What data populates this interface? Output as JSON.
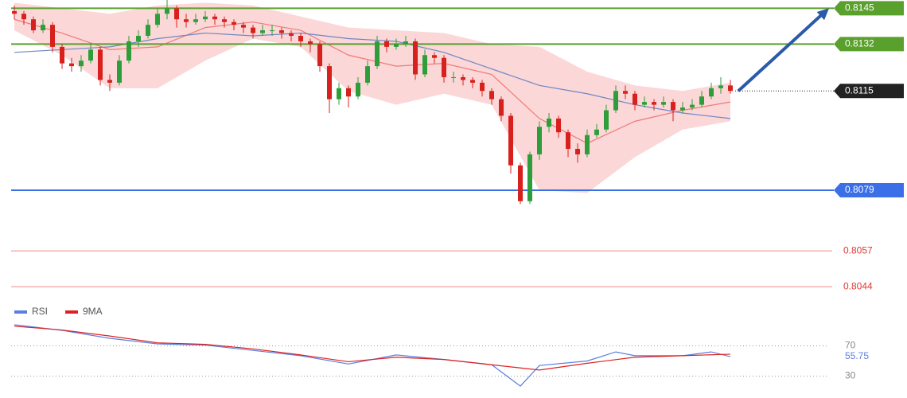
{
  "chart_data": [
    {
      "type": "candlestick",
      "ylim": [
        0.804,
        0.8148
      ],
      "up_color": "#2e9e3a",
      "down_color": "#d8201c",
      "open": [
        0.8144,
        0.8143,
        0.8141,
        0.8137,
        0.8139,
        0.8131,
        0.8125,
        0.8124,
        0.8126,
        0.813,
        0.8119,
        0.8118,
        0.8126,
        0.8133,
        0.8135,
        0.8139,
        0.8143,
        0.8145,
        0.8141,
        0.814,
        0.8141,
        0.8142,
        0.8141,
        0.814,
        0.8139,
        0.8138,
        0.8136,
        0.8137,
        0.8137,
        0.8136,
        0.8135,
        0.8133,
        0.8132,
        0.8124,
        0.8112,
        0.8116,
        0.8113,
        0.8118,
        0.8124,
        0.8133,
        0.8131,
        0.8132,
        0.8133,
        0.8121,
        0.8128,
        0.8127,
        0.812,
        0.812,
        0.8119,
        0.8118,
        0.8115,
        0.8112,
        0.8106,
        0.8088,
        0.8075,
        0.8092,
        0.8102,
        0.8105,
        0.81,
        0.8094,
        0.8092,
        0.8099,
        0.8101,
        0.8108,
        0.8115,
        0.8114,
        0.811,
        0.8111,
        0.811,
        0.8111,
        0.8108,
        0.8109,
        0.811,
        0.8113,
        0.8116,
        0.8117
      ],
      "high": [
        0.8146,
        0.8144,
        0.8142,
        0.8141,
        0.814,
        0.8132,
        0.8127,
        0.8128,
        0.8132,
        0.8131,
        0.8121,
        0.8128,
        0.8135,
        0.8137,
        0.8141,
        0.8145,
        0.8148,
        0.8146,
        0.8143,
        0.8143,
        0.8144,
        0.8143,
        0.8142,
        0.8141,
        0.814,
        0.8139,
        0.8139,
        0.8139,
        0.8138,
        0.8137,
        0.8136,
        0.8134,
        0.8133,
        0.8125,
        0.8118,
        0.8117,
        0.812,
        0.8126,
        0.8135,
        0.8134,
        0.8134,
        0.8135,
        0.8134,
        0.813,
        0.8129,
        0.8128,
        0.8122,
        0.8121,
        0.812,
        0.8119,
        0.8116,
        0.8113,
        0.8107,
        0.8089,
        0.8093,
        0.8104,
        0.8107,
        0.8106,
        0.8101,
        0.8096,
        0.8101,
        0.8103,
        0.811,
        0.8117,
        0.8117,
        0.8115,
        0.8113,
        0.8112,
        0.8113,
        0.8112,
        0.8111,
        0.8112,
        0.8115,
        0.8118,
        0.812,
        0.8119
      ],
      "low": [
        0.8141,
        0.8139,
        0.8136,
        0.8136,
        0.8129,
        0.8123,
        0.8122,
        0.8122,
        0.8125,
        0.8117,
        0.8115,
        0.8117,
        0.8125,
        0.8131,
        0.8134,
        0.8138,
        0.8141,
        0.8138,
        0.8138,
        0.8139,
        0.814,
        0.8139,
        0.8138,
        0.8137,
        0.8136,
        0.8134,
        0.8135,
        0.8135,
        0.8134,
        0.8133,
        0.8131,
        0.8129,
        0.8122,
        0.8107,
        0.811,
        0.8109,
        0.8112,
        0.8117,
        0.8123,
        0.8129,
        0.813,
        0.8131,
        0.8119,
        0.812,
        0.8125,
        0.8118,
        0.8118,
        0.8117,
        0.8116,
        0.8113,
        0.811,
        0.8104,
        0.8085,
        0.8074,
        0.8074,
        0.809,
        0.81,
        0.8098,
        0.8091,
        0.8089,
        0.8091,
        0.8098,
        0.81,
        0.8107,
        0.8112,
        0.8108,
        0.8109,
        0.8108,
        0.8109,
        0.8104,
        0.8107,
        0.8108,
        0.8109,
        0.8112,
        0.8114,
        0.8114
      ],
      "close": [
        0.8143,
        0.8141,
        0.8137,
        0.8139,
        0.8131,
        0.8125,
        0.8124,
        0.8126,
        0.813,
        0.8119,
        0.8118,
        0.8126,
        0.8133,
        0.8135,
        0.8139,
        0.8143,
        0.8145,
        0.8141,
        0.814,
        0.8141,
        0.8142,
        0.8141,
        0.814,
        0.8139,
        0.8138,
        0.8136,
        0.8137,
        0.8137,
        0.8136,
        0.8135,
        0.8133,
        0.8132,
        0.8124,
        0.8112,
        0.8116,
        0.8113,
        0.8118,
        0.8124,
        0.8133,
        0.8131,
        0.8132,
        0.8133,
        0.8121,
        0.8128,
        0.8127,
        0.812,
        0.812,
        0.8119,
        0.8118,
        0.8115,
        0.8112,
        0.8106,
        0.8088,
        0.8075,
        0.8092,
        0.8102,
        0.8105,
        0.81,
        0.8094,
        0.8092,
        0.8099,
        0.8101,
        0.8108,
        0.8115,
        0.8114,
        0.811,
        0.8111,
        0.811,
        0.8111,
        0.8108,
        0.8109,
        0.811,
        0.8113,
        0.8116,
        0.8117,
        0.8115
      ],
      "bands": {
        "x": [
          0,
          5,
          10,
          15,
          20,
          25,
          30,
          35,
          40,
          45,
          50,
          55,
          60,
          65,
          70,
          75
        ],
        "color": "#f9c9c9",
        "upper": [
          0.8147,
          0.8145,
          0.8143,
          0.8146,
          0.8147,
          0.8146,
          0.8142,
          0.8138,
          0.8137,
          0.8136,
          0.8132,
          0.8131,
          0.8122,
          0.8117,
          0.8115,
          0.8118
        ],
        "lower": [
          0.8137,
          0.8128,
          0.8116,
          0.8116,
          0.8126,
          0.8134,
          0.8131,
          0.8115,
          0.811,
          0.8114,
          0.811,
          0.8079,
          0.8078,
          0.8091,
          0.8101,
          0.8104
        ]
      },
      "series": [
        {
          "color": "#f07a78",
          "x": [
            0,
            5,
            10,
            15,
            20,
            25,
            30,
            35,
            40,
            45,
            50,
            55,
            60,
            65,
            70,
            75
          ],
          "values": [
            0.8141,
            0.8136,
            0.813,
            0.8131,
            0.8138,
            0.814,
            0.8137,
            0.8128,
            0.8124,
            0.8125,
            0.8121,
            0.8105,
            0.8096,
            0.8104,
            0.8108,
            0.8111
          ]
        },
        {
          "color": "#6d86c4",
          "x": [
            0,
            5,
            10,
            15,
            20,
            25,
            30,
            35,
            40,
            45,
            50,
            55,
            60,
            65,
            70,
            75
          ],
          "values": [
            0.8129,
            0.813,
            0.8131,
            0.8134,
            0.8136,
            0.8135,
            0.8136,
            0.8134,
            0.8133,
            0.8129,
            0.8123,
            0.8117,
            0.8114,
            0.811,
            0.8107,
            0.8105
          ]
        }
      ],
      "levels": [
        {
          "value": 0.8145,
          "color": "#5aa02c",
          "style": "tag"
        },
        {
          "value": 0.8132,
          "color": "#5aa02c",
          "style": "tag"
        },
        {
          "value": 0.8115,
          "color": "#222222",
          "style": "current"
        },
        {
          "value": 0.8079,
          "color": "#3a6fe8",
          "style": "tag"
        },
        {
          "value": 0.8057,
          "color": "#e03a32",
          "style": "plain"
        },
        {
          "value": 0.8044,
          "color": "#e03a32",
          "style": "plain"
        }
      ],
      "arrow_color": "#2a5aa8"
    },
    {
      "type": "line",
      "ylim": [
        20,
        100
      ],
      "yticks": [
        70,
        30
      ],
      "current": 55.75,
      "current_color": "#5b7fe0",
      "series": [
        {
          "name": "RSI",
          "color": "#5b7fe0",
          "x": [
            0,
            5,
            10,
            15,
            20,
            25,
            30,
            35,
            40,
            45,
            50,
            53,
            55,
            60,
            63,
            65,
            70,
            73,
            75
          ],
          "values": [
            97.9,
            90.5,
            80.0,
            72.6,
            71.0,
            64.0,
            57.0,
            46.0,
            58.0,
            52.0,
            45.0,
            16.8,
            44.0,
            50.0,
            62.0,
            57.0,
            57.0,
            62.0,
            55.75
          ]
        },
        {
          "name": "9MA",
          "color": "#e02020",
          "x": [
            0,
            5,
            10,
            15,
            20,
            25,
            30,
            35,
            40,
            45,
            50,
            55,
            60,
            65,
            70,
            75
          ],
          "values": [
            96,
            91,
            83,
            74,
            72,
            66,
            58,
            49,
            55,
            52,
            45,
            38,
            47,
            55,
            57,
            59
          ]
        }
      ]
    }
  ]
}
